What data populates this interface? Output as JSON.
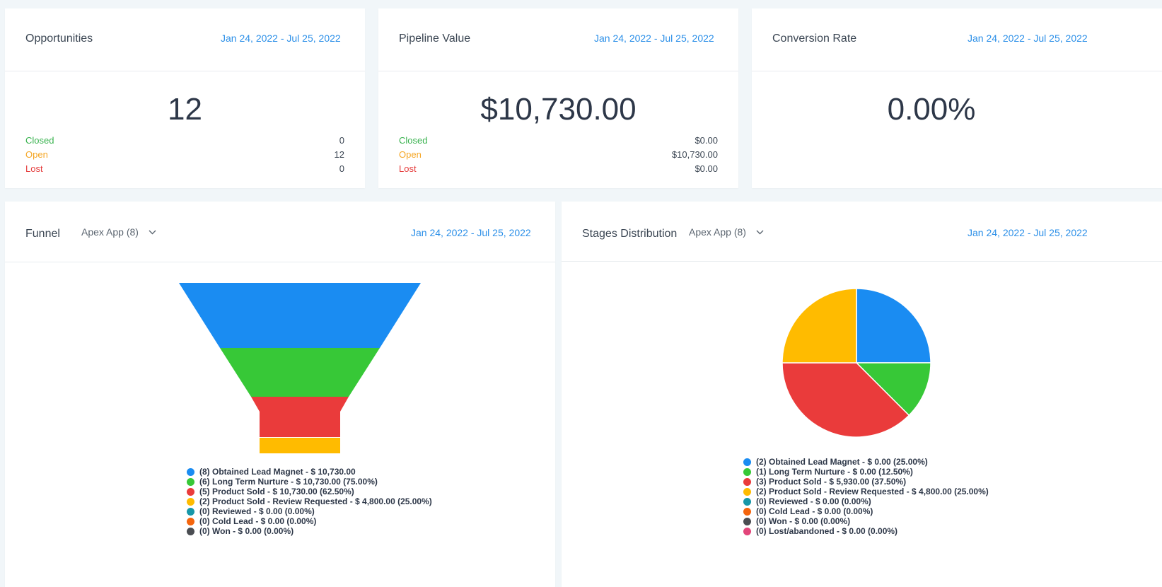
{
  "cards": {
    "opportunities": {
      "title": "Opportunities",
      "date_range": "Jan 24, 2022 - Jul 25, 2022",
      "value": "12",
      "breakdown": [
        {
          "label": "Closed",
          "value": "0",
          "color": "#37b24d"
        },
        {
          "label": "Open",
          "value": "12",
          "color": "#f5a623"
        },
        {
          "label": "Lost",
          "value": "0",
          "color": "#e53e3e"
        }
      ]
    },
    "pipeline": {
      "title": "Pipeline Value",
      "date_range": "Jan 24, 2022 - Jul 25, 2022",
      "value": "$10,730.00",
      "breakdown": [
        {
          "label": "Closed",
          "value": "$0.00",
          "color": "#37b24d"
        },
        {
          "label": "Open",
          "value": "$10,730.00",
          "color": "#f5a623"
        },
        {
          "label": "Lost",
          "value": "$0.00",
          "color": "#e53e3e"
        }
      ]
    },
    "conversion": {
      "title": "Conversion Rate",
      "date_range": "Jan 24, 2022 - Jul 25, 2022",
      "value": "0.00%"
    }
  },
  "funnel": {
    "title": "Funnel",
    "pipeline_select": "Apex App (8)",
    "date_range": "Jan 24, 2022 - Jul 25, 2022",
    "chart_data": {
      "type": "funnel",
      "categories": [
        "Obtained Lead Magnet",
        "Long Term Nurture",
        "Product Sold",
        "Product Sold - Review Requested",
        "Reviewed",
        "Cold Lead",
        "Won"
      ],
      "values": [
        8,
        6,
        5,
        2,
        0,
        0,
        0
      ],
      "colors": [
        "#1a8cf2",
        "#37c837",
        "#ea3b3b",
        "#ffbb00",
        "#1797a8",
        "#f4650d",
        "#4a4d52"
      ]
    },
    "legend": [
      "(8) Obtained Lead Magnet - $ 10,730.00",
      "(6) Long Term Nurture - $ 10,730.00 (75.00%)",
      "(5) Product Sold - $ 10,730.00 (62.50%)",
      "(2) Product Sold - Review Requested - $ 4,800.00 (25.00%)",
      "(0) Reviewed - $ 0.00 (0.00%)",
      "(0) Cold Lead - $ 0.00 (0.00%)",
      "(0) Won - $ 0.00 (0.00%)"
    ]
  },
  "stages": {
    "title": "Stages Distribution",
    "pipeline_select": "Apex App (8)",
    "date_range": "Jan 24, 2022 - Jul 25, 2022",
    "chart_data": {
      "type": "pie",
      "categories": [
        "Obtained Lead Magnet",
        "Long Term Nurture",
        "Product Sold",
        "Product Sold - Review Requested",
        "Reviewed",
        "Cold Lead",
        "Won",
        "Lost/abandoned"
      ],
      "values": [
        25.0,
        12.5,
        37.5,
        25.0,
        0,
        0,
        0,
        0
      ],
      "colors": [
        "#1a8cf2",
        "#37c837",
        "#ea3b3b",
        "#ffbb00",
        "#1797a8",
        "#f4650d",
        "#4a4d52",
        "#e2457a"
      ]
    },
    "legend": [
      "(2) Obtained Lead Magnet - $ 0.00 (25.00%)",
      "(1) Long Term Nurture - $ 0.00 (12.50%)",
      "(3) Product Sold - $ 5,930.00 (37.50%)",
      "(2) Product Sold - Review Requested - $ 4,800.00 (25.00%)",
      "(0) Reviewed - $ 0.00 (0.00%)",
      "(0) Cold Lead - $ 0.00 (0.00%)",
      "(0) Won - $ 0.00 (0.00%)",
      "(0) Lost/abandoned - $ 0.00 (0.00%)"
    ]
  }
}
